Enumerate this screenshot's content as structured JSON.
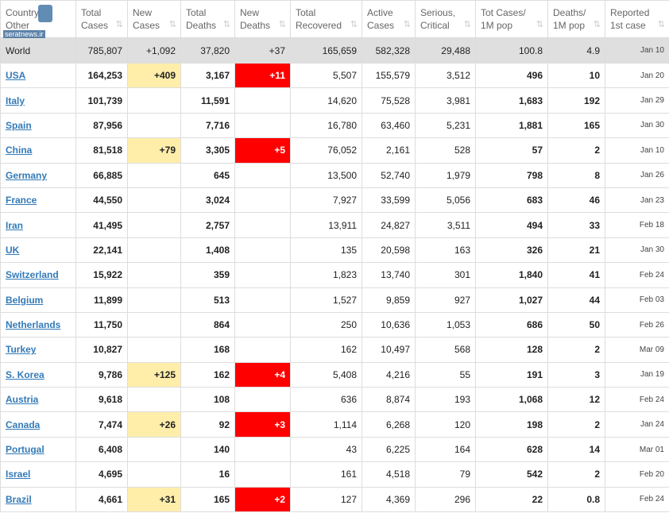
{
  "watermark": "seratnews.ir",
  "table": {
    "header": [
      [
        "Country,",
        "Other"
      ],
      [
        "Total",
        "Cases"
      ],
      [
        "New",
        "Cases"
      ],
      [
        "Total",
        "Deaths"
      ],
      [
        "New",
        "Deaths"
      ],
      [
        "Total",
        "Recovered"
      ],
      [
        "Active",
        "Cases"
      ],
      [
        "Serious,",
        "Critical"
      ],
      [
        "Tot Cases/",
        "1M pop"
      ],
      [
        "Deaths/",
        "1M pop"
      ],
      [
        "Reported",
        "1st case"
      ]
    ],
    "rows": [
      [
        "World",
        "785,807",
        "+1,092",
        "37,820",
        "+37",
        "165,659",
        "582,328",
        "29,488",
        "100.8",
        "4.9",
        "Jan 10"
      ],
      [
        "USA",
        "164,253",
        "+409",
        "3,167",
        "+11",
        "5,507",
        "155,579",
        "3,512",
        "496",
        "10",
        "Jan 20"
      ],
      [
        "Italy",
        "101,739",
        null,
        "11,591",
        null,
        "14,620",
        "75,528",
        "3,981",
        "1,683",
        "192",
        "Jan 29"
      ],
      [
        "Spain",
        "87,956",
        null,
        "7,716",
        null,
        "16,780",
        "63,460",
        "5,231",
        "1,881",
        "165",
        "Jan 30"
      ],
      [
        "China",
        "81,518",
        "+79",
        "3,305",
        "+5",
        "76,052",
        "2,161",
        "528",
        "57",
        "2",
        "Jan 10"
      ],
      [
        "Germany",
        "66,885",
        null,
        "645",
        null,
        "13,500",
        "52,740",
        "1,979",
        "798",
        "8",
        "Jan 26"
      ],
      [
        "France",
        "44,550",
        null,
        "3,024",
        null,
        "7,927",
        "33,599",
        "5,056",
        "683",
        "46",
        "Jan 23"
      ],
      [
        "Iran",
        "41,495",
        null,
        "2,757",
        null,
        "13,911",
        "24,827",
        "3,511",
        "494",
        "33",
        "Feb 18"
      ],
      [
        "UK",
        "22,141",
        null,
        "1,408",
        null,
        "135",
        "20,598",
        "163",
        "326",
        "21",
        "Jan 30"
      ],
      [
        "Switzerland",
        "15,922",
        null,
        "359",
        null,
        "1,823",
        "13,740",
        "301",
        "1,840",
        "41",
        "Feb 24"
      ],
      [
        "Belgium",
        "11,899",
        null,
        "513",
        null,
        "1,527",
        "9,859",
        "927",
        "1,027",
        "44",
        "Feb 03"
      ],
      [
        "Netherlands",
        "11,750",
        null,
        "864",
        null,
        "250",
        "10,636",
        "1,053",
        "686",
        "50",
        "Feb 26"
      ],
      [
        "Turkey",
        "10,827",
        null,
        "168",
        null,
        "162",
        "10,497",
        "568",
        "128",
        "2",
        "Mar 09"
      ],
      [
        "S. Korea",
        "9,786",
        "+125",
        "162",
        "+4",
        "5,408",
        "4,216",
        "55",
        "191",
        "3",
        "Jan 19"
      ],
      [
        "Austria",
        "9,618",
        null,
        "108",
        null,
        "636",
        "8,874",
        "193",
        "1,068",
        "12",
        "Feb 24"
      ],
      [
        "Canada",
        "7,474",
        "+26",
        "92",
        "+3",
        "1,114",
        "6,268",
        "120",
        "198",
        "2",
        "Jan 24"
      ],
      [
        "Portugal",
        "6,408",
        null,
        "140",
        null,
        "43",
        "6,225",
        "164",
        "628",
        "14",
        "Mar 01"
      ],
      [
        "Israel",
        "4,695",
        null,
        "16",
        null,
        "161",
        "4,518",
        "79",
        "542",
        "2",
        "Feb 20"
      ],
      [
        "Brazil",
        "4,661",
        "+31",
        "165",
        "+2",
        "127",
        "4,369",
        "296",
        "22",
        "0.8",
        "Feb 24"
      ]
    ]
  }
}
